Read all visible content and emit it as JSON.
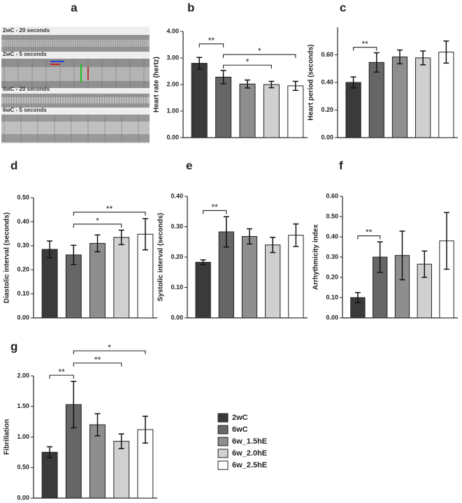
{
  "panel_a": {
    "label": "a",
    "strips": [
      "2wC - 20 seconds",
      "2wC - 5 seconds",
      "6wC - 20 seconds",
      "6wC - 5 seconds"
    ]
  },
  "legend": [
    {
      "name": "2wC",
      "color": "#3a3a3a"
    },
    {
      "name": "6wC",
      "color": "#666666"
    },
    {
      "name": "6w_1.5hE",
      "color": "#8e8e8e"
    },
    {
      "name": "6w_2.0hE",
      "color": "#d0d0d0"
    },
    {
      "name": "6w_2.5hE",
      "color": "#ffffff"
    }
  ],
  "chart_data": [
    {
      "type": "bar",
      "panel_label": "b",
      "y_label": "Heart rate (hertz)",
      "values": [
        2.8,
        2.28,
        2.02,
        2.0,
        1.95
      ],
      "errors": [
        0.22,
        0.25,
        0.15,
        0.12,
        0.17
      ],
      "ylim": [
        0,
        4
      ],
      "yticks": [
        {
          "value": 0,
          "label": "0.00"
        },
        {
          "value": 1,
          "label": "1.00"
        },
        {
          "value": 2,
          "label": "2.00"
        },
        {
          "value": 3,
          "label": "3.00"
        },
        {
          "value": 4,
          "label": "4.00"
        }
      ],
      "significance": [
        {
          "from": 1,
          "to": 3,
          "label": "*"
        },
        {
          "from": 1,
          "to": 4,
          "label": "*"
        },
        {
          "from": 0,
          "to": 1,
          "label": "**"
        }
      ]
    },
    {
      "type": "bar",
      "panel_label": "c",
      "y_label": "Heart period (seconds)",
      "values": [
        0.4,
        0.545,
        0.585,
        0.578,
        0.62
      ],
      "errors": [
        0.04,
        0.07,
        0.05,
        0.05,
        0.08
      ],
      "ylim": [
        0,
        0.8
      ],
      "yticks": [
        {
          "value": 0,
          "label": "0.00"
        },
        {
          "value": 0.2,
          "label": "0.20"
        },
        {
          "value": 0.4,
          "label": "0.40"
        },
        {
          "value": 0.6,
          "label": "0.60"
        }
      ],
      "significance": [
        {
          "from": 0,
          "to": 1,
          "label": "**"
        }
      ]
    },
    {
      "type": "bar",
      "panel_label": "d",
      "y_label": "Diastolic interval (seconds)",
      "values": [
        0.285,
        0.262,
        0.31,
        0.335,
        0.348
      ],
      "errors": [
        0.035,
        0.04,
        0.035,
        0.03,
        0.065
      ],
      "ylim": [
        0,
        0.5
      ],
      "yticks": [
        {
          "value": 0,
          "label": "0.00"
        },
        {
          "value": 0.1,
          "label": "0.10"
        },
        {
          "value": 0.2,
          "label": "0.20"
        },
        {
          "value": 0.3,
          "label": "0.30"
        },
        {
          "value": 0.4,
          "label": "0.40"
        },
        {
          "value": 0.5,
          "label": "0.50"
        }
      ],
      "significance": [
        {
          "from": 1,
          "to": 3,
          "label": "*"
        },
        {
          "from": 1,
          "to": 4,
          "label": "**"
        }
      ]
    },
    {
      "type": "bar",
      "panel_label": "e",
      "y_label": "Systolic interval (seconds)",
      "values": [
        0.183,
        0.283,
        0.268,
        0.24,
        0.272
      ],
      "errors": [
        0.008,
        0.05,
        0.025,
        0.025,
        0.037
      ],
      "ylim": [
        0,
        0.4
      ],
      "yticks": [
        {
          "value": 0,
          "label": "0.00"
        },
        {
          "value": 0.1,
          "label": "0.10"
        },
        {
          "value": 0.2,
          "label": "0.20"
        },
        {
          "value": 0.3,
          "label": "0.30"
        },
        {
          "value": 0.4,
          "label": "0.40"
        }
      ],
      "significance": [
        {
          "from": 0,
          "to": 1,
          "label": "**"
        }
      ]
    },
    {
      "type": "bar",
      "panel_label": "f",
      "y_label": "Arrhythmicity index",
      "values": [
        0.1,
        0.3,
        0.308,
        0.265,
        0.38
      ],
      "errors": [
        0.025,
        0.075,
        0.12,
        0.065,
        0.14
      ],
      "ylim": [
        0,
        0.6
      ],
      "yticks": [
        {
          "value": 0,
          "label": "0.00"
        },
        {
          "value": 0.1,
          "label": "0.10"
        },
        {
          "value": 0.2,
          "label": "0.20"
        },
        {
          "value": 0.3,
          "label": "0.30"
        },
        {
          "value": 0.4,
          "label": "0.40"
        },
        {
          "value": 0.5,
          "label": "0.50"
        },
        {
          "value": 0.6,
          "label": "0.60"
        }
      ],
      "significance": [
        {
          "from": 0,
          "to": 1,
          "label": "**"
        }
      ]
    },
    {
      "type": "bar",
      "panel_label": "g",
      "y_label": "Fibrillation",
      "values": [
        0.75,
        1.53,
        1.2,
        0.93,
        1.12
      ],
      "errors": [
        0.09,
        0.38,
        0.18,
        0.12,
        0.22
      ],
      "ylim": [
        0,
        2
      ],
      "yticks": [
        {
          "value": 0,
          "label": "0.00"
        },
        {
          "value": 0.5,
          "label": "0.50"
        },
        {
          "value": 1,
          "label": "1.00"
        },
        {
          "value": 1.5,
          "label": "1.50"
        },
        {
          "value": 2,
          "label": "2.00"
        }
      ],
      "significance": [
        {
          "from": 0,
          "to": 1,
          "label": "**"
        },
        {
          "from": 1,
          "to": 3,
          "label": "**"
        },
        {
          "from": 1,
          "to": 4,
          "label": "*"
        }
      ]
    }
  ]
}
